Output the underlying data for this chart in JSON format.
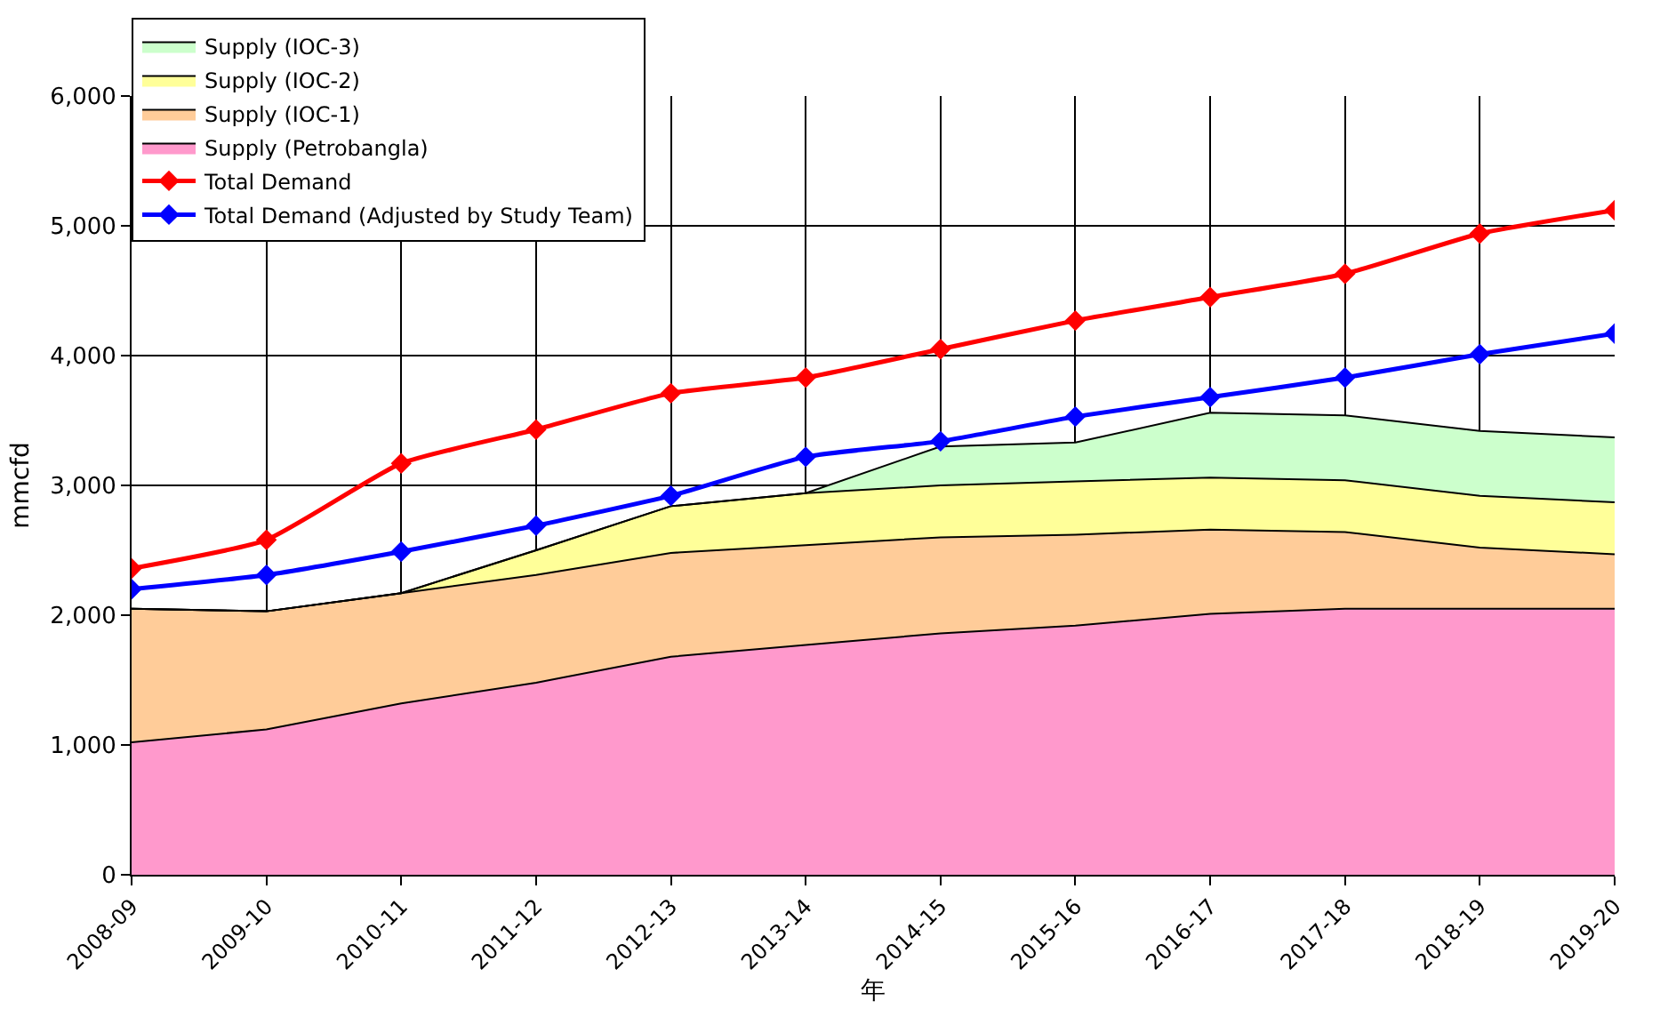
{
  "chart_data": {
    "type": "area",
    "stacked": true,
    "xlabel": "年",
    "ylabel": "mmcfd",
    "categories": [
      "2008-09",
      "2009-10",
      "2010-11",
      "2011-12",
      "2012-13",
      "2013-14",
      "2014-15",
      "2015-16",
      "2016-17",
      "2017-18",
      "2018-19",
      "2019-20"
    ],
    "ylim": [
      0,
      6000
    ],
    "yticks": [
      0,
      {
        "value": 1000,
        "label": "1,000"
      },
      {
        "value": 2000,
        "label": "2,000"
      },
      {
        "value": 3000,
        "label": "3,000"
      },
      {
        "value": 4000,
        "label": "4,000"
      },
      {
        "value": 5000,
        "label": "5,000"
      },
      {
        "value": 6000,
        "label": "6,000"
      }
    ],
    "grid": true,
    "legend": "top left",
    "series": [
      {
        "name": "Supply (Petrobangla)",
        "color": "#ff99cc",
        "values": [
          1020,
          1120,
          1320,
          1480,
          1680,
          1770,
          1860,
          1920,
          2010,
          2050,
          2050,
          2050
        ]
      },
      {
        "name": "Supply (IOC-1)",
        "color": "#ffcc99",
        "values": [
          1030,
          910,
          850,
          830,
          800,
          770,
          740,
          700,
          650,
          590,
          470,
          420
        ]
      },
      {
        "name": "Supply (IOC-2)",
        "color": "#ffff99",
        "values": [
          0,
          0,
          0,
          190,
          360,
          400,
          400,
          410,
          400,
          400,
          400,
          400
        ]
      },
      {
        "name": "Supply (IOC-3)",
        "color": "#ccffcc",
        "values": [
          0,
          0,
          0,
          0,
          0,
          0,
          300,
          300,
          500,
          500,
          500,
          500
        ]
      },
      {
        "name": "Total Demand",
        "type": "line",
        "marker": "diamond",
        "color": "#ff0000",
        "values": [
          2360,
          2580,
          3170,
          3430,
          3710,
          3830,
          4050,
          4270,
          4450,
          4630,
          4940,
          5120
        ]
      },
      {
        "name": "Total Demand (Adjusted by Study Team)",
        "type": "line",
        "marker": "diamond",
        "color": "#0000ff",
        "values": [
          2200,
          2310,
          2490,
          2690,
          2920,
          3220,
          3340,
          3530,
          3680,
          3830,
          4010,
          4170
        ]
      }
    ]
  }
}
